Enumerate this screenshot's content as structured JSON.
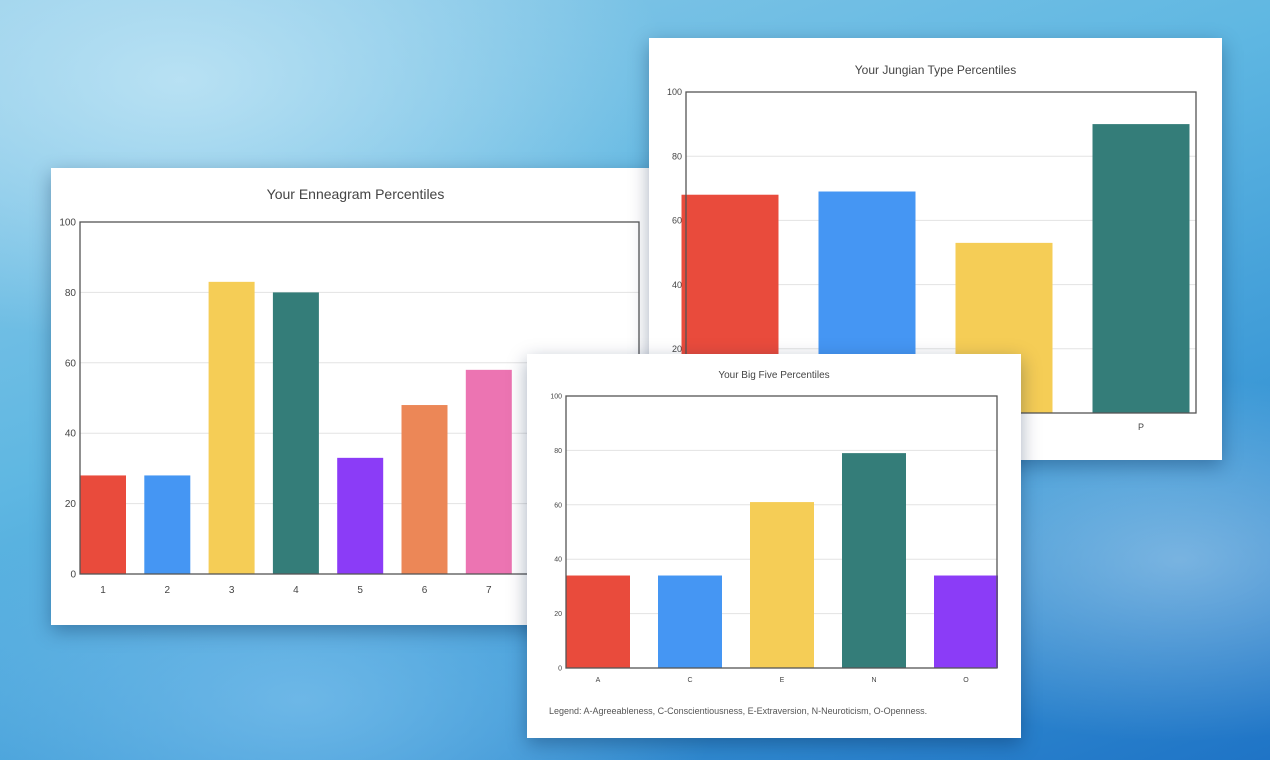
{
  "palette": [
    "#e94b3c",
    "#4596f3",
    "#f5cd56",
    "#347d79",
    "#8b3cf7",
    "#ec8757",
    "#ec74b2",
    "#8e8e8e",
    "#a9a9a9"
  ],
  "chart_data": [
    {
      "id": "enneagram",
      "type": "bar",
      "title": "Your Enneagram Percentiles",
      "categories": [
        "1",
        "2",
        "3",
        "4",
        "5",
        "6",
        "7"
      ],
      "values": [
        28,
        28,
        83,
        80,
        33,
        48,
        58
      ],
      "yticks": [
        "0",
        "20",
        "40",
        "60",
        "80",
        "100"
      ],
      "ylim": [
        0,
        100
      ],
      "xlabel": "",
      "ylabel": ""
    },
    {
      "id": "jungian",
      "type": "bar",
      "title": "Your Jungian Type Percentiles",
      "categories": [
        "",
        "",
        "",
        "P"
      ],
      "values": [
        68,
        69,
        53,
        90
      ],
      "yticks": [
        "20",
        "40",
        "60",
        "80",
        "100"
      ],
      "ylim": [
        0,
        100
      ],
      "xlabel": "",
      "ylabel": ""
    },
    {
      "id": "bigfive",
      "type": "bar",
      "title": "Your Big Five Percentiles",
      "categories": [
        "A",
        "C",
        "E",
        "N",
        "O"
      ],
      "values": [
        34,
        34,
        61,
        79,
        34
      ],
      "yticks": [
        "0",
        "20",
        "40",
        "60",
        "80",
        "100"
      ],
      "ylim": [
        0,
        100
      ],
      "xlabel": "",
      "ylabel": "",
      "legend_note": "Legend: A-Agreeableness, C-Conscientiousness, E-Extraversion, N-Neuroticism, O-Openness."
    }
  ]
}
